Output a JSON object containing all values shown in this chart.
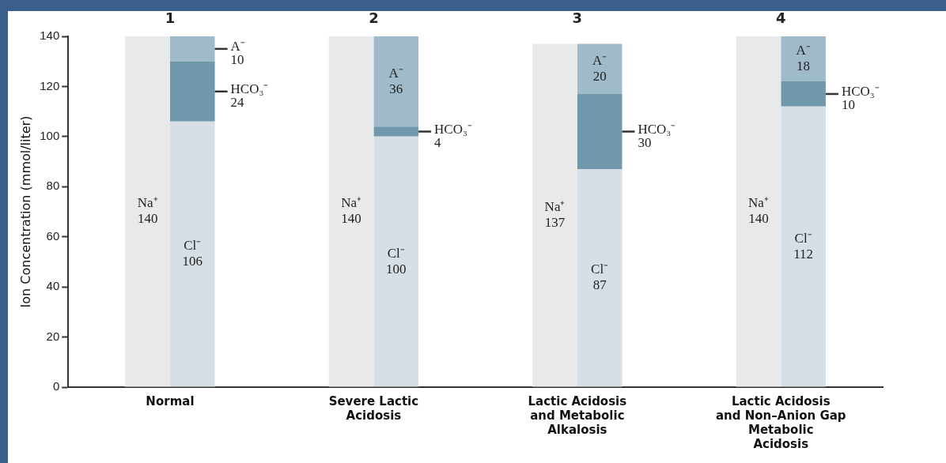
{
  "chart_data": {
    "type": "bar",
    "ylabel": "Ion Concentration (mmol/liter)",
    "categories": [
      "Normal",
      "Severe Lactic Acidosis",
      "Lactic Acidosis and Metabolic Alkalosis",
      "Lactic Acidosis and Non–Anion Gap Metabolic Acidosis"
    ],
    "series": [
      {
        "name": "Na⁺",
        "color": "#e8e9eb",
        "values": [
          140,
          140,
          137,
          140
        ]
      },
      {
        "name": "Cl⁻",
        "color": "#d6dfe6",
        "values": [
          106,
          100,
          87,
          112
        ],
        "base": [
          0,
          0,
          0,
          0
        ]
      },
      {
        "name": "HCO₃⁻",
        "color": "#6f98ab",
        "values": [
          24,
          4,
          30,
          10
        ],
        "base": [
          106,
          100,
          87,
          112
        ]
      },
      {
        "name": "A⁻",
        "color": "#9fbac9",
        "values": [
          10,
          36,
          20,
          18
        ],
        "base": [
          130,
          104,
          117,
          122
        ]
      }
    ],
    "ylim": [
      0,
      140
    ],
    "yticks": [
      0,
      20,
      40,
      60,
      80,
      100,
      120,
      140
    ],
    "grid": false,
    "legend": false,
    "data_labels": true,
    "annotations": [
      "1",
      "2",
      "3",
      "4"
    ]
  }
}
